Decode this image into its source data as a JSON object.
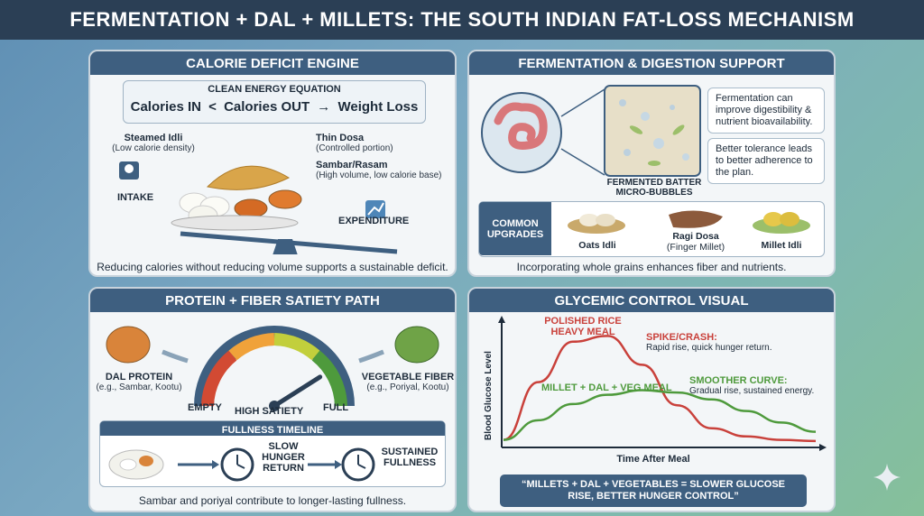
{
  "title": "FERMENTATION + DAL + MILLETS: THE SOUTH INDIAN FAT-LOSS MECHANISM",
  "calorie": {
    "heading": "CALORIE DEFICIT ENGINE",
    "equation_title": "CLEAN ENERGY EQUATION",
    "eq_in": "Calories IN",
    "eq_lt": "<",
    "eq_out": "Calories OUT",
    "eq_arrow": "→",
    "eq_result": "Weight Loss",
    "idli_label": "Steamed Idli",
    "idli_sub": "(Low calorie density)",
    "dosa_label": "Thin Dosa",
    "dosa_sub": "(Controlled portion)",
    "sambar_label": "Sambar/Rasam",
    "sambar_sub": "(High volume, low calorie base)",
    "intake": "INTAKE",
    "expenditure": "EXPENDITURE",
    "caption": "Reducing calories without reducing volume supports a sustainable deficit."
  },
  "ferment": {
    "heading": "FERMENTATION & DIGESTION SUPPORT",
    "note1": "Fermentation can improve digestibility & nutrient bioavailability.",
    "note2": "Better tolerance leads to better adherence to the plan.",
    "batter_label": "FERMENTED BATTER MICRO-BUBBLES",
    "upgrades_label": "COMMON UPGRADES",
    "item1": "Oats Idli",
    "item2": "Ragi Dosa",
    "item2_sub": "(Finger Millet)",
    "item3": "Millet Idli",
    "caption": "Incorporating whole grains enhances fiber and nutrients."
  },
  "satiety": {
    "heading": "PROTEIN + FIBER SATIETY PATH",
    "dal_label": "DAL PROTEIN",
    "dal_sub": "(e.g., Sambar, Kootu)",
    "veg_label": "VEGETABLE FIBER",
    "veg_sub": "(e.g., Poriyal, Kootu)",
    "empty": "EMPTY",
    "high": "HIGH SATIETY",
    "full": "FULL",
    "gauge_level": 0.82,
    "timeline_title": "FULLNESS TIMELINE",
    "slow": "SLOW HUNGER RETURN",
    "sustained": "SUSTAINED FULLNESS",
    "caption": "Sambar and poriyal contribute to longer-lasting fullness."
  },
  "glycemic": {
    "heading": "GLYCEMIC CONTROL VISUAL",
    "ylabel": "Blood Glucose Level",
    "xlabel": "Time After Meal",
    "rice_label": "POLISHED RICE HEAVY MEAL",
    "spike_title": "SPIKE/CRASH:",
    "spike_sub": "Rapid rise, quick hunger return.",
    "millet_label": "MILLET + DAL + VEG MEAL",
    "smooth_title": "SMOOTHER CURVE:",
    "smooth_sub": "Gradual rise, sustained energy.",
    "quote": "“MILLETS + DAL + VEGETABLES = SLOWER GLUCOSE RISE, BETTER HUNGER CONTROL”",
    "colors": {
      "rice": "#c9413b",
      "millet": "#4e9a3c"
    }
  },
  "chart_data": {
    "type": "line",
    "title": "GLYCEMIC CONTROL VISUAL",
    "xlabel": "Time After Meal",
    "ylabel": "Blood Glucose Level",
    "series": [
      {
        "name": "POLISHED RICE HEAVY MEAL",
        "values": [
          0.05,
          0.55,
          0.9,
          0.95,
          0.7,
          0.35,
          0.15,
          0.08,
          0.05,
          0.04
        ]
      },
      {
        "name": "MILLET + DAL + VEG MEAL",
        "values": [
          0.05,
          0.22,
          0.36,
          0.44,
          0.48,
          0.46,
          0.4,
          0.3,
          0.2,
          0.12
        ]
      }
    ],
    "x": [
      0,
      1,
      2,
      3,
      4,
      5,
      6,
      7,
      8,
      9
    ],
    "grid": false
  }
}
